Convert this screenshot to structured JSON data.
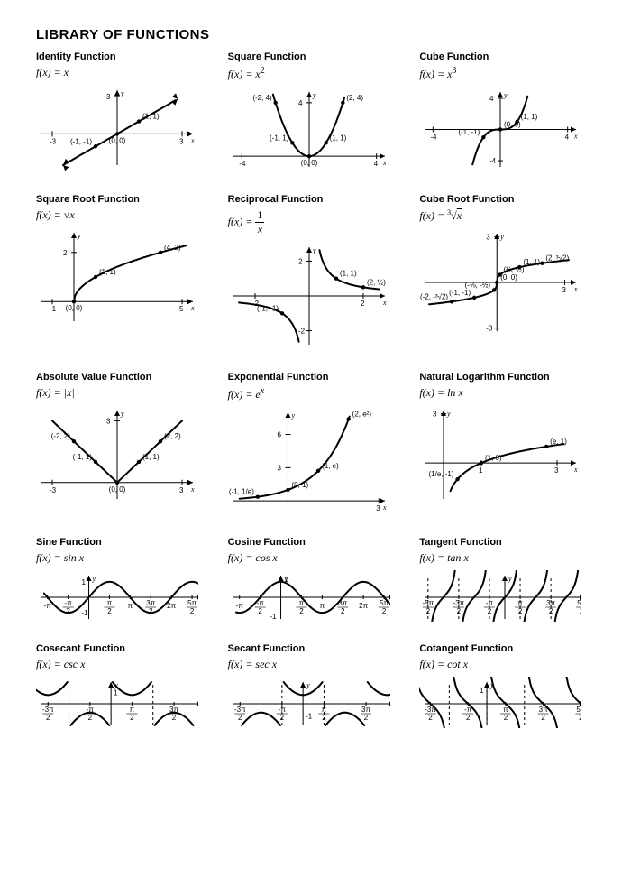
{
  "page_title": "LIBRARY OF FUNCTIONS",
  "text_color": "#000000",
  "background_color": "#ffffff",
  "curve_stroke_width": 2,
  "functions": [
    {
      "title": "Identity Function",
      "formula_html": "<i>f</i>(<i>x</i>) = <i>x</i>",
      "chart": {
        "xlim": [
          -3.5,
          3.5
        ],
        "ylim": [
          -2.5,
          3.5
        ],
        "x_ticks": [
          -3,
          3
        ],
        "y_ticks": [
          3
        ],
        "points": [
          [
            -1,
            -1
          ],
          [
            0,
            0
          ],
          [
            1,
            1
          ]
        ],
        "point_labels": [
          "(-1, -1)",
          "(0, 0)",
          "(1, 1)"
        ]
      }
    },
    {
      "title": "Square Function",
      "formula_html": "<i>f</i>(<i>x</i>) = <i>x</i><sup class='up'>2</sup>",
      "chart": {
        "xlim": [
          -4.5,
          4.5
        ],
        "ylim": [
          -0.8,
          4.8
        ],
        "x_ticks": [
          -4,
          4
        ],
        "y_ticks": [
          4
        ],
        "points": [
          [
            -2,
            4
          ],
          [
            -1,
            1
          ],
          [
            0,
            0
          ],
          [
            1,
            1
          ],
          [
            2,
            4
          ]
        ],
        "point_labels": [
          "(-2, 4)",
          "(-1, 1)",
          "(0, 0)",
          "(1, 1)",
          "(2, 4)"
        ]
      }
    },
    {
      "title": "Cube Function",
      "formula_html": "<i>f</i>(<i>x</i>) = <i>x</i><sup class='up'>3</sup>",
      "chart": {
        "xlim": [
          -4.5,
          4.5
        ],
        "ylim": [
          -4.8,
          4.8
        ],
        "x_ticks": [
          -4,
          4
        ],
        "y_ticks": [
          -4,
          4
        ],
        "points": [
          [
            -1,
            -1
          ],
          [
            0,
            0
          ],
          [
            1,
            1
          ]
        ],
        "point_labels": [
          "(-1, -1)",
          "(0, 0)",
          "(1, 1)"
        ]
      }
    },
    {
      "title": "Square Root Function",
      "formula_html": "<i>f</i>(<i>x</i>) = &radic;<span style='text-decoration:overline'><i>x</i></span>",
      "chart": {
        "xlim": [
          -1.5,
          5.5
        ],
        "ylim": [
          -0.8,
          2.8
        ],
        "x_ticks": [
          -1,
          5
        ],
        "y_ticks": [
          2
        ],
        "points": [
          [
            0,
            0
          ],
          [
            1,
            1
          ],
          [
            4,
            2
          ]
        ],
        "point_labels": [
          "(0, 0)",
          "(1, 1)",
          "(4, 2)"
        ]
      }
    },
    {
      "title": "Reciprocal Function",
      "formula_html": "<i>f</i>(<i>x</i>) = <span style='display:inline-block;vertical-align:middle;text-align:center;font-style:normal'><span style='display:block;border-bottom:1px solid #000;padding:0 2px'>1</span><span style='display:block;font-style:italic'>x</span></span>",
      "chart": {
        "xlim": [
          -2.8,
          2.8
        ],
        "ylim": [
          -2.8,
          2.8
        ],
        "x_ticks": [
          -2,
          2
        ],
        "y_ticks": [
          -2,
          2
        ],
        "points": [
          [
            -1,
            -1
          ],
          [
            1,
            1
          ],
          [
            2,
            0.5
          ]
        ],
        "point_labels": [
          "(-1, -1)",
          "(1, 1)",
          "(2, ½)"
        ]
      }
    },
    {
      "title": "Cube Root Function",
      "formula_html": "<i>f</i>(<i>x</i>) = <sup class='up' style='font-size:8px'>3</sup>&radic;<span style='text-decoration:overline'><i>x</i></span>",
      "chart": {
        "xlim": [
          -3.2,
          3.5
        ],
        "ylim": [
          -3.2,
          3.2
        ],
        "x_ticks": [
          3
        ],
        "y_ticks": [
          -3,
          3
        ],
        "points": [
          [
            -2,
            -1.26
          ],
          [
            -1,
            -1
          ],
          [
            -0.125,
            -0.5
          ],
          [
            0,
            0
          ],
          [
            0.125,
            0.5
          ],
          [
            1,
            1
          ],
          [
            2,
            1.26
          ]
        ],
        "point_labels": [
          "(-2, -³√2)",
          "(-1, -1)",
          "(-⅛, -½)",
          "(0, 0)",
          "(⅛, ½)",
          "(1, 1)",
          "(2, ³√2)"
        ]
      }
    },
    {
      "title": "Absolute Value Function",
      "formula_html": "<i>f</i>(<i>x</i>) = |<i>x</i>|",
      "chart": {
        "xlim": [
          -3.5,
          3.5
        ],
        "ylim": [
          -0.8,
          3.5
        ],
        "x_ticks": [
          -3,
          3
        ],
        "y_ticks": [
          3
        ],
        "points": [
          [
            -2,
            2
          ],
          [
            -1,
            1
          ],
          [
            0,
            0
          ],
          [
            1,
            1
          ],
          [
            2,
            2
          ]
        ],
        "point_labels": [
          "(-2, 2)",
          "(-1, 1)",
          "(0, 0)",
          "(1, 1)",
          "(2, 2)"
        ]
      }
    },
    {
      "title": "Exponential Function",
      "formula_html": "<i>f</i>(<i>x</i>) = <i>e</i><sup class='up' style='font-style:italic'>x</sup>",
      "chart": {
        "xlim": [
          -1.8,
          3.2
        ],
        "ylim": [
          -0.8,
          8
        ],
        "x_ticks": [
          3
        ],
        "y_ticks": [
          3,
          6
        ],
        "points": [
          [
            -1,
            0.37
          ],
          [
            0,
            1
          ],
          [
            1,
            2.72
          ],
          [
            2,
            7.39
          ]
        ],
        "point_labels": [
          "(-1, 1/e)",
          "(0, 1)",
          "(1, e)",
          "(2, e²)"
        ]
      }
    },
    {
      "title": "Natural Logarithm Function",
      "formula_html": "<i>f</i>(<i>x</i>) = ln <i>x</i>",
      "chart": {
        "xlim": [
          -0.5,
          3.5
        ],
        "ylim": [
          -2.2,
          3.2
        ],
        "x_ticks": [
          1,
          3
        ],
        "y_ticks": [
          3
        ],
        "points": [
          [
            0.37,
            -1
          ],
          [
            1,
            0
          ],
          [
            2.72,
            1
          ]
        ],
        "point_labels": [
          "(1/e, -1)",
          "(1, 0)",
          "(e, 1)"
        ]
      }
    },
    {
      "title": "Sine Function",
      "formula_html": "<i>f</i>(<i>x</i>) = sin <i>x</i>",
      "chart": {
        "xlim": [
          -3.6,
          8.6
        ],
        "ylim": [
          -1.4,
          1.4
        ],
        "tick_labels": [
          "-π",
          "-π/2",
          "π/2",
          "π",
          "3π/2",
          "2π",
          "5π/2"
        ],
        "tick_x": [
          -3.14,
          -1.57,
          1.57,
          3.14,
          4.71,
          6.28,
          7.85
        ]
      }
    },
    {
      "title": "Cosine Function",
      "formula_html": "<i>f</i>(<i>x</i>) = cos <i>x</i>",
      "chart": {
        "xlim": [
          -3.6,
          8.6
        ],
        "ylim": [
          -1.4,
          1.4
        ],
        "tick_labels": [
          "-π",
          "-π/2",
          "π/2",
          "π",
          "3π/2",
          "2π",
          "5π/2"
        ],
        "tick_x": [
          -3.14,
          -1.57,
          1.57,
          3.14,
          4.71,
          6.28,
          7.85
        ]
      }
    },
    {
      "title": "Tangent Function",
      "formula_html": "<i>f</i>(<i>x</i>) = tan <i>x</i>",
      "chart": {
        "xlim": [
          -8.2,
          8.2
        ],
        "ylim": [
          -2,
          2
        ],
        "asymptotes": [
          -7.85,
          -4.71,
          -1.57,
          1.57,
          4.71,
          7.85
        ],
        "tick_labels": [
          "-5π/2",
          "-3π/2",
          "-π/2",
          "π/2",
          "3π/2",
          "5π/2"
        ]
      }
    },
    {
      "title": "Cosecant Function",
      "formula_html": "<i>f</i>(<i>x</i>) = csc <i>x</i>",
      "chart": {
        "xlim": [
          -5.2,
          6.8
        ],
        "ylim": [
          -2.5,
          2.5
        ],
        "asymptotes": [
          -3.14,
          0,
          3.14,
          6.28
        ],
        "asym_draw": [
          -3.14,
          3.14
        ],
        "lobe_centers_up": [
          -4.71,
          1.57
        ],
        "lobe_centers_down": [
          -1.57,
          4.71
        ],
        "tick_labels": [
          "-3π/2",
          "-π/2",
          "π/2",
          "3π/2"
        ],
        "tick_x": [
          -4.71,
          -1.57,
          1.57,
          4.71
        ]
      }
    },
    {
      "title": "Secant Function",
      "formula_html": "<i>f</i>(<i>x</i>) = sec <i>x</i>",
      "chart": {
        "xlim": [
          -5.2,
          6.8
        ],
        "ylim": [
          -2.5,
          2.5
        ],
        "asymptotes": [
          -4.71,
          -1.57,
          1.57,
          4.71
        ],
        "asym_draw": [
          -1.57,
          1.57
        ],
        "lobe_centers_up": [
          0,
          6.28
        ],
        "lobe_centers_down": [
          -3.14,
          3.14
        ],
        "tick_labels": [
          "-3π/2",
          "-π/2",
          "π/2",
          "3π/2"
        ],
        "tick_x": [
          -4.71,
          -1.57,
          1.57,
          4.71
        ]
      }
    },
    {
      "title": "Cotangent Function",
      "formula_html": "<i>f</i>(<i>x</i>) = cot <i>x</i>",
      "chart": {
        "xlim": [
          -5.2,
          8.2
        ],
        "ylim": [
          -2,
          2
        ],
        "asymptotes": [
          -3.14,
          0,
          3.14,
          6.28
        ],
        "tick_labels": [
          "-3π/2",
          "-π/2",
          "π/2",
          "3π/2",
          "5π/2"
        ],
        "tick_x": [
          -4.71,
          -1.57,
          1.57,
          4.71,
          7.85
        ]
      }
    }
  ]
}
